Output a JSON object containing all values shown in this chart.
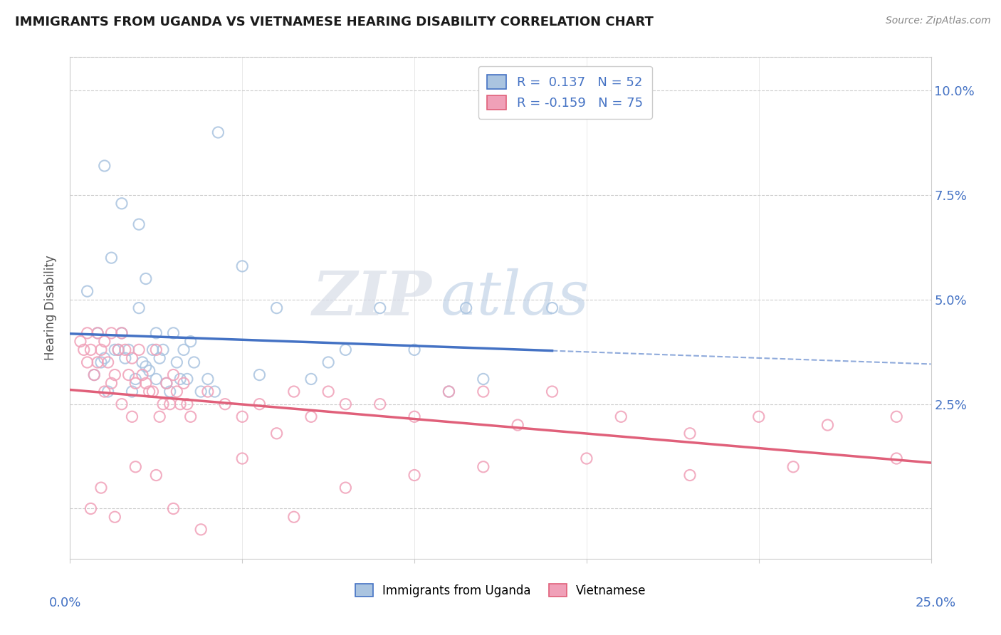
{
  "title": "IMMIGRANTS FROM UGANDA VS VIETNAMESE HEARING DISABILITY CORRELATION CHART",
  "source": "Source: ZipAtlas.com",
  "ylabel": "Hearing Disability",
  "xlim": [
    0.0,
    0.25
  ],
  "ylim": [
    -0.012,
    0.108
  ],
  "yticks": [
    0.0,
    0.025,
    0.05,
    0.075,
    0.1
  ],
  "ytick_labels": [
    "",
    "2.5%",
    "5.0%",
    "7.5%",
    "10.0%"
  ],
  "xticks": [
    0.0,
    0.05,
    0.1,
    0.15,
    0.2,
    0.25
  ],
  "uganda_R": 0.137,
  "uganda_N": 52,
  "vietnamese_R": -0.159,
  "vietnamese_N": 75,
  "legend_label_uganda": "Immigrants from Uganda",
  "legend_label_vietnamese": "Vietnamese",
  "scatter_color_uganda": "#aac4e0",
  "scatter_color_vietnamese": "#f0a0b8",
  "line_color_uganda": "#4472c4",
  "line_color_vietnamese": "#e0607a",
  "background_color": "#ffffff",
  "watermark_zip": "ZIP",
  "watermark_atlas": "atlas",
  "uganda_x": [
    0.005,
    0.008,
    0.01,
    0.01,
    0.012,
    0.013,
    0.015,
    0.015,
    0.016,
    0.017,
    0.018,
    0.019,
    0.02,
    0.02,
    0.021,
    0.022,
    0.022,
    0.023,
    0.024,
    0.025,
    0.025,
    0.026,
    0.027,
    0.028,
    0.029,
    0.03,
    0.031,
    0.032,
    0.033,
    0.034,
    0.035,
    0.036,
    0.038,
    0.04,
    0.042,
    0.05,
    0.055,
    0.06,
    0.07,
    0.075,
    0.08,
    0.09,
    0.1,
    0.11,
    0.115,
    0.12,
    0.14,
    0.007,
    0.009,
    0.011,
    0.014,
    0.043
  ],
  "uganda_y": [
    0.052,
    0.042,
    0.036,
    0.082,
    0.06,
    0.038,
    0.073,
    0.042,
    0.036,
    0.038,
    0.028,
    0.031,
    0.048,
    0.068,
    0.035,
    0.055,
    0.034,
    0.033,
    0.038,
    0.042,
    0.031,
    0.036,
    0.038,
    0.03,
    0.028,
    0.042,
    0.035,
    0.031,
    0.038,
    0.031,
    0.04,
    0.035,
    0.028,
    0.031,
    0.028,
    0.058,
    0.032,
    0.048,
    0.031,
    0.035,
    0.038,
    0.048,
    0.038,
    0.028,
    0.048,
    0.031,
    0.048,
    0.032,
    0.035,
    0.028,
    0.038,
    0.09
  ],
  "viet_x": [
    0.003,
    0.004,
    0.005,
    0.005,
    0.006,
    0.007,
    0.008,
    0.008,
    0.009,
    0.01,
    0.01,
    0.011,
    0.012,
    0.012,
    0.013,
    0.014,
    0.015,
    0.015,
    0.016,
    0.017,
    0.018,
    0.018,
    0.019,
    0.02,
    0.021,
    0.022,
    0.023,
    0.024,
    0.025,
    0.026,
    0.027,
    0.028,
    0.029,
    0.03,
    0.031,
    0.032,
    0.033,
    0.034,
    0.035,
    0.04,
    0.045,
    0.05,
    0.055,
    0.06,
    0.065,
    0.07,
    0.075,
    0.08,
    0.09,
    0.1,
    0.11,
    0.12,
    0.13,
    0.14,
    0.16,
    0.18,
    0.2,
    0.22,
    0.24,
    0.006,
    0.009,
    0.013,
    0.019,
    0.025,
    0.03,
    0.038,
    0.05,
    0.065,
    0.08,
    0.1,
    0.12,
    0.15,
    0.18,
    0.21,
    0.24
  ],
  "viet_y": [
    0.04,
    0.038,
    0.042,
    0.035,
    0.038,
    0.032,
    0.042,
    0.035,
    0.038,
    0.04,
    0.028,
    0.035,
    0.042,
    0.03,
    0.032,
    0.038,
    0.042,
    0.025,
    0.038,
    0.032,
    0.036,
    0.022,
    0.03,
    0.038,
    0.032,
    0.03,
    0.028,
    0.028,
    0.038,
    0.022,
    0.025,
    0.03,
    0.025,
    0.032,
    0.028,
    0.025,
    0.03,
    0.025,
    0.022,
    0.028,
    0.025,
    0.022,
    0.025,
    0.018,
    0.028,
    0.022,
    0.028,
    0.025,
    0.025,
    0.022,
    0.028,
    0.028,
    0.02,
    0.028,
    0.022,
    0.018,
    0.022,
    0.02,
    0.022,
    0.0,
    0.005,
    -0.002,
    0.01,
    0.008,
    0.0,
    -0.005,
    0.012,
    -0.002,
    0.005,
    0.008,
    0.01,
    0.012,
    0.008,
    0.01,
    0.012
  ]
}
